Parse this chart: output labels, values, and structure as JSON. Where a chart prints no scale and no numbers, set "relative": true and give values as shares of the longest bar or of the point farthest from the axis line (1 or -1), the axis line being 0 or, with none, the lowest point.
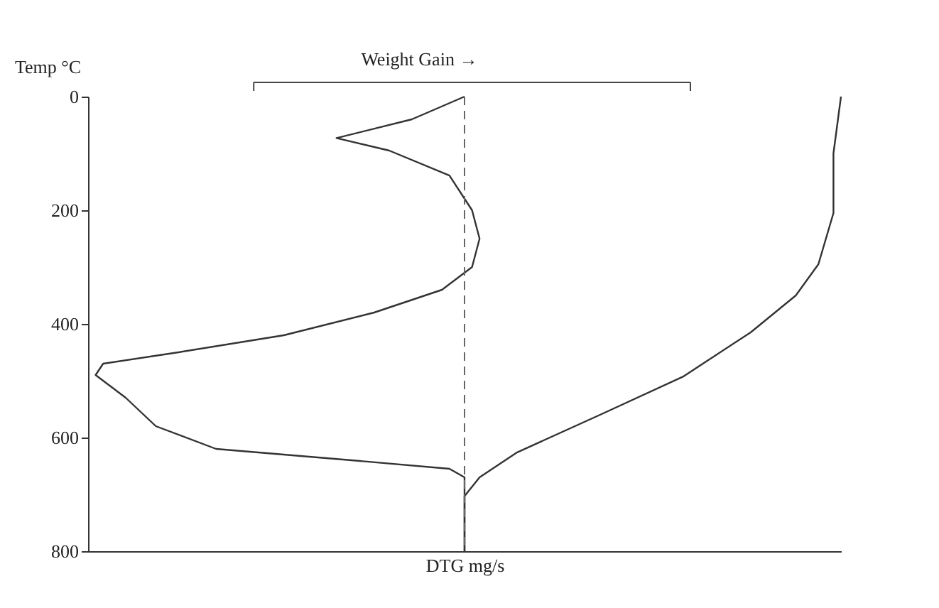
{
  "chart_data": {
    "type": "line",
    "orientation": "horizontal",
    "relative": true,
    "xlabel": "DTG     mg/s",
    "ylabel": "Temp °C",
    "ylim": [
      800,
      0
    ],
    "yticks": [
      0,
      200,
      400,
      600,
      800
    ],
    "grid": false,
    "legend": false,
    "tick_labels": "y",
    "line_style": "solid",
    "marker": "none",
    "annotations": [
      "Weight Gain →"
    ],
    "ref_lines": [
      {
        "axis": "x",
        "value": 0.5,
        "color": "#666666",
        "line_style": "dashed"
      }
    ],
    "series": [
      {
        "color": "#333333",
        "x": [
          0,
          40,
          73,
          95,
          139,
          200,
          250,
          300,
          340,
          380,
          420,
          450,
          470,
          490,
          530,
          580,
          620,
          640,
          655,
          670,
          800
        ],
        "values": [
          0.5,
          0.43,
          0.33,
          0.4,
          0.48,
          0.51,
          0.52,
          0.51,
          0.47,
          0.38,
          0.26,
          0.12,
          0.02,
          0.01,
          0.05,
          0.09,
          0.17,
          0.35,
          0.48,
          0.5,
          0.5
        ]
      },
      {
        "color": "#333333",
        "x": [
          0,
          100,
          205,
          295,
          350,
          415,
          493,
          560,
          626,
          670,
          703,
          780,
          800
        ],
        "values": [
          1.0,
          0.99,
          0.99,
          0.97,
          0.94,
          0.88,
          0.79,
          0.68,
          0.57,
          0.52,
          0.5,
          0.5,
          0.5
        ]
      }
    ]
  }
}
